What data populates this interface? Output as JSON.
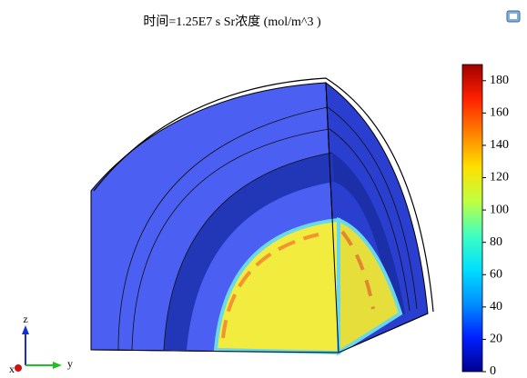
{
  "chart_data": {
    "type": "volume-slice",
    "title": "时间=1.25E7 s  Sr浓度 (mol/m^3 )",
    "axis_labels": {
      "x": "x",
      "y": "y",
      "z": "z"
    },
    "clim": [
      0,
      190
    ],
    "colorbar_ticks": [
      0,
      20,
      40,
      60,
      80,
      100,
      120,
      140,
      160,
      180
    ],
    "colormap": [
      "#00008f",
      "#0020ff",
      "#0090ff",
      "#00e0ff",
      "#40ffc0",
      "#c0ff40",
      "#ffe000",
      "#ff8000",
      "#ff2000",
      "#a00000"
    ]
  }
}
